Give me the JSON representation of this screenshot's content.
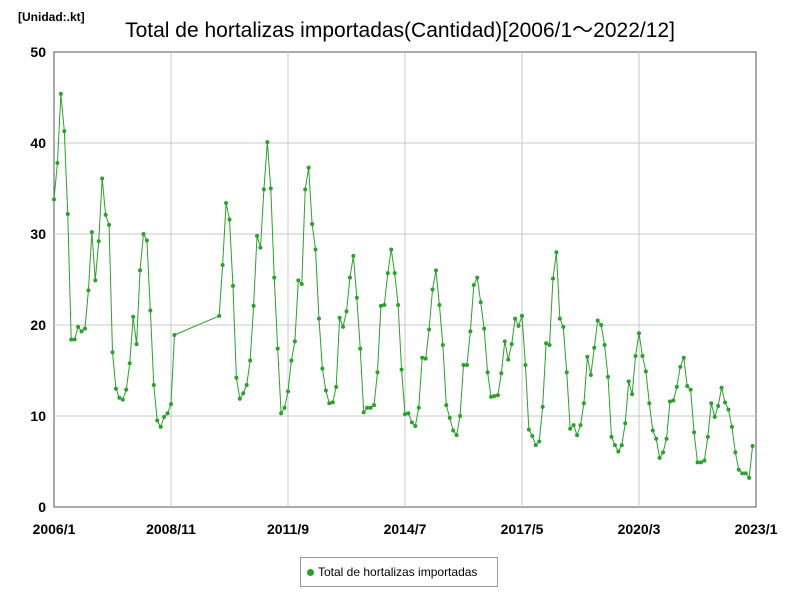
{
  "unit_label": "[Unidad:.kt]",
  "chart_data": {
    "type": "line",
    "title": "Total de hortalizas importadas(Cantidad)[2006/1～2022/12]",
    "ylim": [
      0,
      50
    ],
    "y_ticks": [
      0,
      10,
      20,
      30,
      40,
      50
    ],
    "x_range": [
      "2006/1",
      "2023/1"
    ],
    "x_ticks": [
      "2006/1",
      "2008/11",
      "2011/9",
      "2014/7",
      "2017/5",
      "2020/3",
      "2023/1"
    ],
    "grid": true,
    "legend_position": "bottom",
    "color": "#2ca02c",
    "series": [
      {
        "name": "Total de hortalizas importadas",
        "points": [
          [
            "2006/1",
            33.8
          ],
          [
            "2006/2",
            37.8
          ],
          [
            "2006/3",
            45.4
          ],
          [
            "2006/4",
            41.3
          ],
          [
            "2006/5",
            32.2
          ],
          [
            "2006/6",
            18.4
          ],
          [
            "2006/7",
            18.4
          ],
          [
            "2006/8",
            19.8
          ],
          [
            "2006/9",
            19.3
          ],
          [
            "2006/10",
            19.6
          ],
          [
            "2006/11",
            23.8
          ],
          [
            "2006/12",
            30.2
          ],
          [
            "2007/1",
            24.9
          ],
          [
            "2007/2",
            29.2
          ],
          [
            "2007/3",
            36.1
          ],
          [
            "2007/4",
            32.1
          ],
          [
            "2007/5",
            31.0
          ],
          [
            "2007/6",
            17.0
          ],
          [
            "2007/7",
            13.0
          ],
          [
            "2007/8",
            12.0
          ],
          [
            "2007/9",
            11.8
          ],
          [
            "2007/10",
            12.9
          ],
          [
            "2007/11",
            15.8
          ],
          [
            "2007/12",
            20.9
          ],
          [
            "2008/1",
            17.9
          ],
          [
            "2008/2",
            26.0
          ],
          [
            "2008/3",
            30.0
          ],
          [
            "2008/4",
            29.3
          ],
          [
            "2008/5",
            21.6
          ],
          [
            "2008/6",
            13.4
          ],
          [
            "2008/7",
            9.5
          ],
          [
            "2008/8",
            8.8
          ],
          [
            "2008/9",
            9.9
          ],
          [
            "2008/10",
            10.3
          ],
          [
            "2008/11",
            11.3
          ],
          [
            "2008/12",
            18.9
          ],
          [
            "2010/1",
            21.0
          ],
          [
            "2010/2",
            26.6
          ],
          [
            "2010/3",
            33.4
          ],
          [
            "2010/4",
            31.6
          ],
          [
            "2010/5",
            24.3
          ],
          [
            "2010/6",
            14.2
          ],
          [
            "2010/7",
            11.9
          ],
          [
            "2010/8",
            12.5
          ],
          [
            "2010/9",
            13.4
          ],
          [
            "2010/10",
            16.1
          ],
          [
            "2010/11",
            22.1
          ],
          [
            "2010/12",
            29.8
          ],
          [
            "2011/1",
            28.5
          ],
          [
            "2011/2",
            34.9
          ],
          [
            "2011/3",
            40.1
          ],
          [
            "2011/4",
            35.0
          ],
          [
            "2011/5",
            25.2
          ],
          [
            "2011/6",
            17.4
          ],
          [
            "2011/7",
            10.3
          ],
          [
            "2011/8",
            10.9
          ],
          [
            "2011/9",
            12.7
          ],
          [
            "2011/10",
            16.1
          ],
          [
            "2011/11",
            18.2
          ],
          [
            "2011/12",
            24.9
          ],
          [
            "2012/1",
            24.5
          ],
          [
            "2012/2",
            34.9
          ],
          [
            "2012/3",
            37.3
          ],
          [
            "2012/4",
            31.1
          ],
          [
            "2012/5",
            28.3
          ],
          [
            "2012/6",
            20.7
          ],
          [
            "2012/7",
            15.2
          ],
          [
            "2012/8",
            12.8
          ],
          [
            "2012/9",
            11.4
          ],
          [
            "2012/10",
            11.5
          ],
          [
            "2012/11",
            13.2
          ],
          [
            "2012/12",
            20.8
          ],
          [
            "2013/1",
            19.8
          ],
          [
            "2013/2",
            21.5
          ],
          [
            "2013/3",
            25.2
          ],
          [
            "2013/4",
            27.6
          ],
          [
            "2013/5",
            23.0
          ],
          [
            "2013/6",
            17.4
          ],
          [
            "2013/7",
            10.4
          ],
          [
            "2013/8",
            10.9
          ],
          [
            "2013/9",
            10.9
          ],
          [
            "2013/10",
            11.2
          ],
          [
            "2013/11",
            14.8
          ],
          [
            "2013/12",
            22.1
          ],
          [
            "2014/1",
            22.2
          ],
          [
            "2014/2",
            25.7
          ],
          [
            "2014/3",
            28.3
          ],
          [
            "2014/4",
            25.7
          ],
          [
            "2014/5",
            22.2
          ],
          [
            "2014/6",
            15.1
          ],
          [
            "2014/7",
            10.2
          ],
          [
            "2014/8",
            10.3
          ],
          [
            "2014/9",
            9.3
          ],
          [
            "2014/10",
            8.9
          ],
          [
            "2014/11",
            10.9
          ],
          [
            "2014/12",
            16.4
          ],
          [
            "2015/1",
            16.3
          ],
          [
            "2015/2",
            19.5
          ],
          [
            "2015/3",
            23.9
          ],
          [
            "2015/4",
            26.0
          ],
          [
            "2015/5",
            22.2
          ],
          [
            "2015/6",
            17.8
          ],
          [
            "2015/7",
            11.2
          ],
          [
            "2015/8",
            9.8
          ],
          [
            "2015/9",
            8.4
          ],
          [
            "2015/10",
            7.9
          ],
          [
            "2015/11",
            10.0
          ],
          [
            "2015/12",
            15.6
          ],
          [
            "2016/1",
            15.6
          ],
          [
            "2016/2",
            19.3
          ],
          [
            "2016/3",
            24.4
          ],
          [
            "2016/4",
            25.2
          ],
          [
            "2016/5",
            22.5
          ],
          [
            "2016/6",
            19.6
          ],
          [
            "2016/7",
            14.8
          ],
          [
            "2016/8",
            12.1
          ],
          [
            "2016/9",
            12.2
          ],
          [
            "2016/10",
            12.3
          ],
          [
            "2016/11",
            14.7
          ],
          [
            "2016/12",
            18.2
          ],
          [
            "2017/1",
            16.2
          ],
          [
            "2017/2",
            17.9
          ],
          [
            "2017/3",
            20.7
          ],
          [
            "2017/4",
            19.9
          ],
          [
            "2017/5",
            21.0
          ],
          [
            "2017/6",
            15.6
          ],
          [
            "2017/7",
            8.5
          ],
          [
            "2017/8",
            7.8
          ],
          [
            "2017/9",
            6.8
          ],
          [
            "2017/10",
            7.2
          ],
          [
            "2017/11",
            11.0
          ],
          [
            "2017/12",
            18.0
          ],
          [
            "2018/1",
            17.8
          ],
          [
            "2018/2",
            25.1
          ],
          [
            "2018/3",
            28.0
          ],
          [
            "2018/4",
            20.7
          ],
          [
            "2018/5",
            19.8
          ],
          [
            "2018/6",
            14.8
          ],
          [
            "2018/7",
            8.6
          ],
          [
            "2018/8",
            9.0
          ],
          [
            "2018/9",
            7.9
          ],
          [
            "2018/10",
            9.0
          ],
          [
            "2018/11",
            11.4
          ],
          [
            "2018/12",
            16.5
          ],
          [
            "2019/1",
            14.5
          ],
          [
            "2019/2",
            17.5
          ],
          [
            "2019/3",
            20.5
          ],
          [
            "2019/4",
            20.0
          ],
          [
            "2019/5",
            17.8
          ],
          [
            "2019/6",
            14.3
          ],
          [
            "2019/7",
            7.7
          ],
          [
            "2019/8",
            6.8
          ],
          [
            "2019/9",
            6.1
          ],
          [
            "2019/10",
            6.8
          ],
          [
            "2019/11",
            9.2
          ],
          [
            "2019/12",
            13.8
          ],
          [
            "2020/1",
            12.4
          ],
          [
            "2020/2",
            16.6
          ],
          [
            "2020/3",
            19.1
          ],
          [
            "2020/4",
            16.6
          ],
          [
            "2020/5",
            14.9
          ],
          [
            "2020/6",
            11.4
          ],
          [
            "2020/7",
            8.4
          ],
          [
            "2020/8",
            7.5
          ],
          [
            "2020/9",
            5.4
          ],
          [
            "2020/10",
            6.0
          ],
          [
            "2020/11",
            7.5
          ],
          [
            "2020/12",
            11.6
          ],
          [
            "2021/1",
            11.7
          ],
          [
            "2021/2",
            13.2
          ],
          [
            "2021/3",
            15.4
          ],
          [
            "2021/4",
            16.4
          ],
          [
            "2021/5",
            13.3
          ],
          [
            "2021/6",
            12.9
          ],
          [
            "2021/7",
            8.2
          ],
          [
            "2021/8",
            4.9
          ],
          [
            "2021/9",
            4.9
          ],
          [
            "2021/10",
            5.1
          ],
          [
            "2021/11",
            7.7
          ],
          [
            "2021/12",
            11.4
          ],
          [
            "2022/1",
            9.9
          ],
          [
            "2022/2",
            11.1
          ],
          [
            "2022/3",
            13.1
          ],
          [
            "2022/4",
            11.5
          ],
          [
            "2022/5",
            10.7
          ],
          [
            "2022/6",
            8.8
          ],
          [
            "2022/7",
            6.0
          ],
          [
            "2022/8",
            4.1
          ],
          [
            "2022/9",
            3.7
          ],
          [
            "2022/10",
            3.7
          ],
          [
            "2022/11",
            3.2
          ],
          [
            "2022/12",
            6.7
          ]
        ]
      }
    ]
  }
}
